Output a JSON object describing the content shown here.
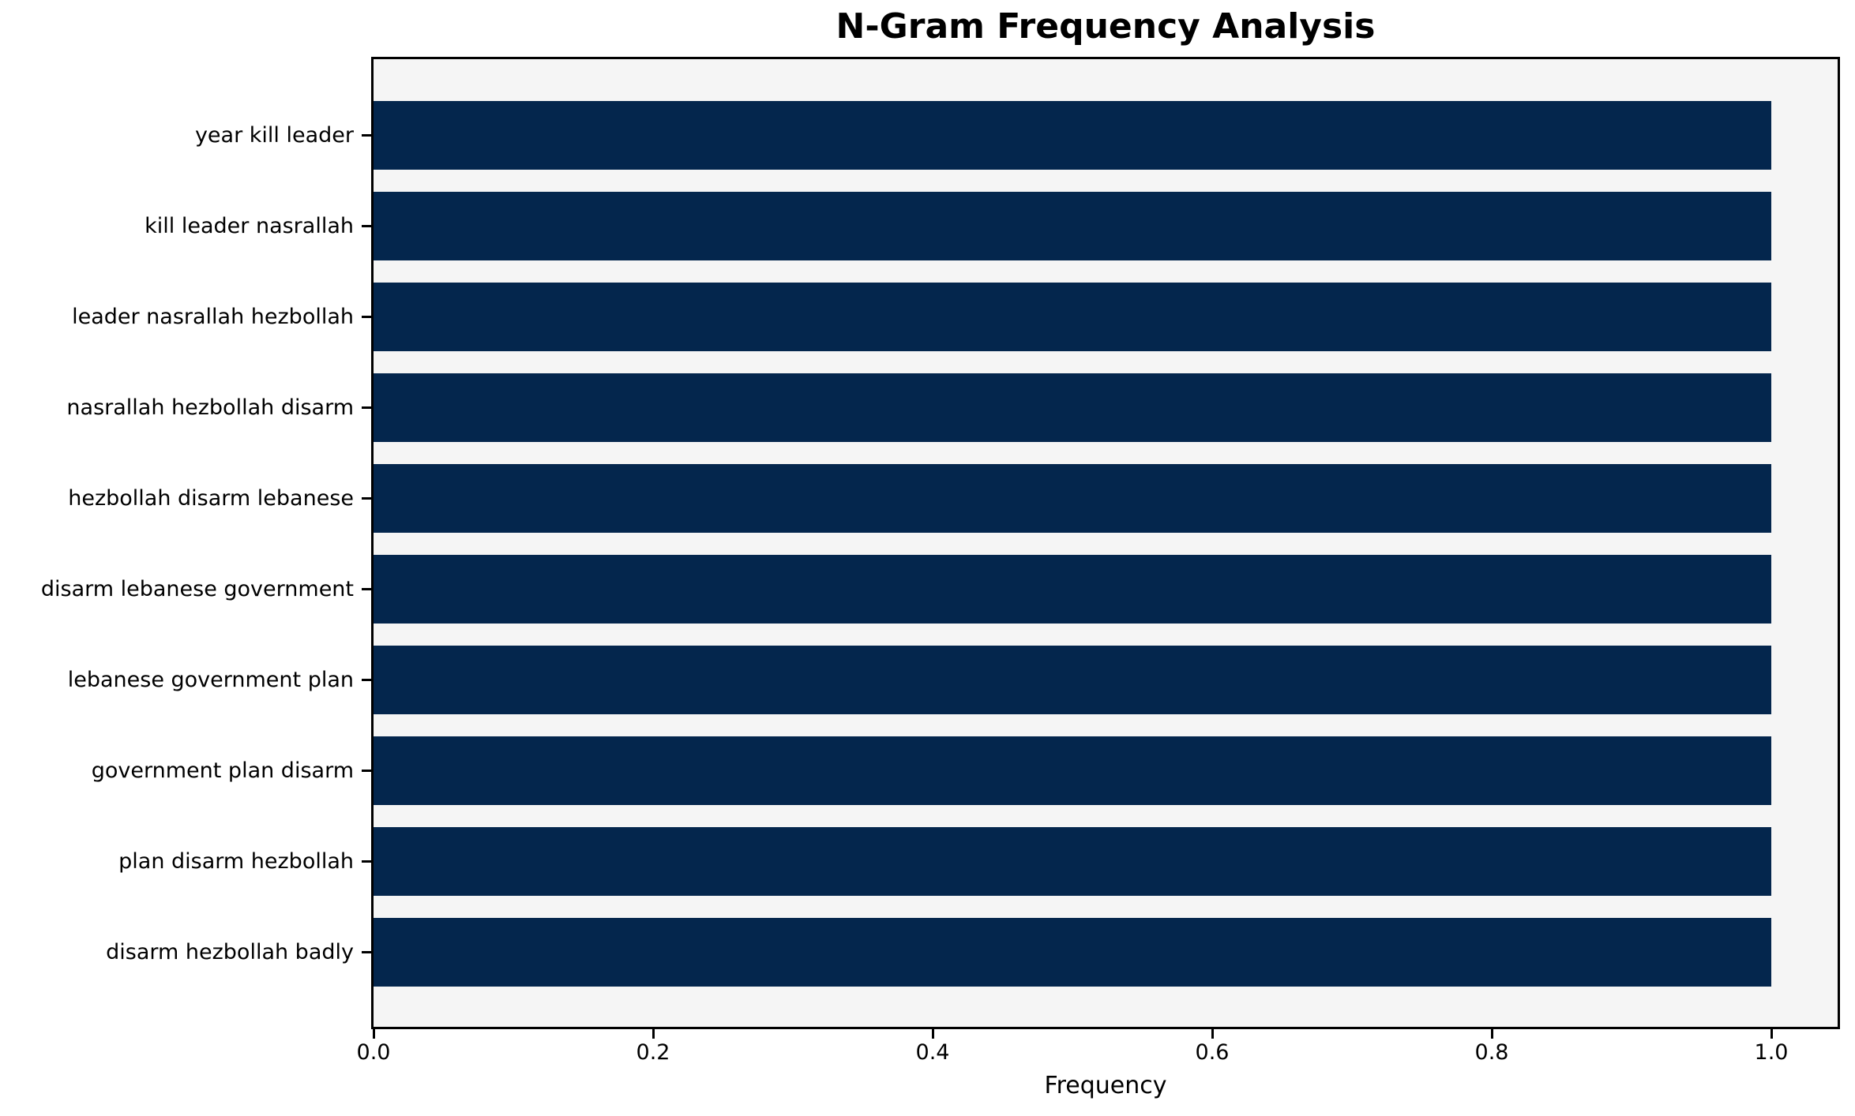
{
  "title": "N-Gram Frequency Analysis",
  "chart_data": {
    "type": "bar",
    "orientation": "horizontal",
    "title": "N-Gram Frequency Analysis",
    "xlabel": "Frequency",
    "ylabel": "",
    "categories": [
      "year kill leader",
      "kill leader nasrallah",
      "leader nasrallah hezbollah",
      "nasrallah hezbollah disarm",
      "hezbollah disarm lebanese",
      "disarm lebanese government",
      "lebanese government plan",
      "government plan disarm",
      "plan disarm hezbollah",
      "disarm hezbollah badly"
    ],
    "values": [
      1.0,
      1.0,
      1.0,
      1.0,
      1.0,
      1.0,
      1.0,
      1.0,
      1.0,
      1.0
    ],
    "xlim": [
      0.0,
      1.05
    ],
    "xticks": [
      0.0,
      0.2,
      0.4,
      0.6,
      0.8,
      1.0
    ],
    "xtick_labels": [
      "0.0",
      "0.2",
      "0.4",
      "0.6",
      "0.8",
      "1.0"
    ],
    "grid": false,
    "legend": null
  },
  "colors": {
    "bar": "#04264d",
    "plot_background": "#f5f5f5",
    "figure_background": "#ffffff",
    "spine": "#000000",
    "text": "#000000"
  }
}
